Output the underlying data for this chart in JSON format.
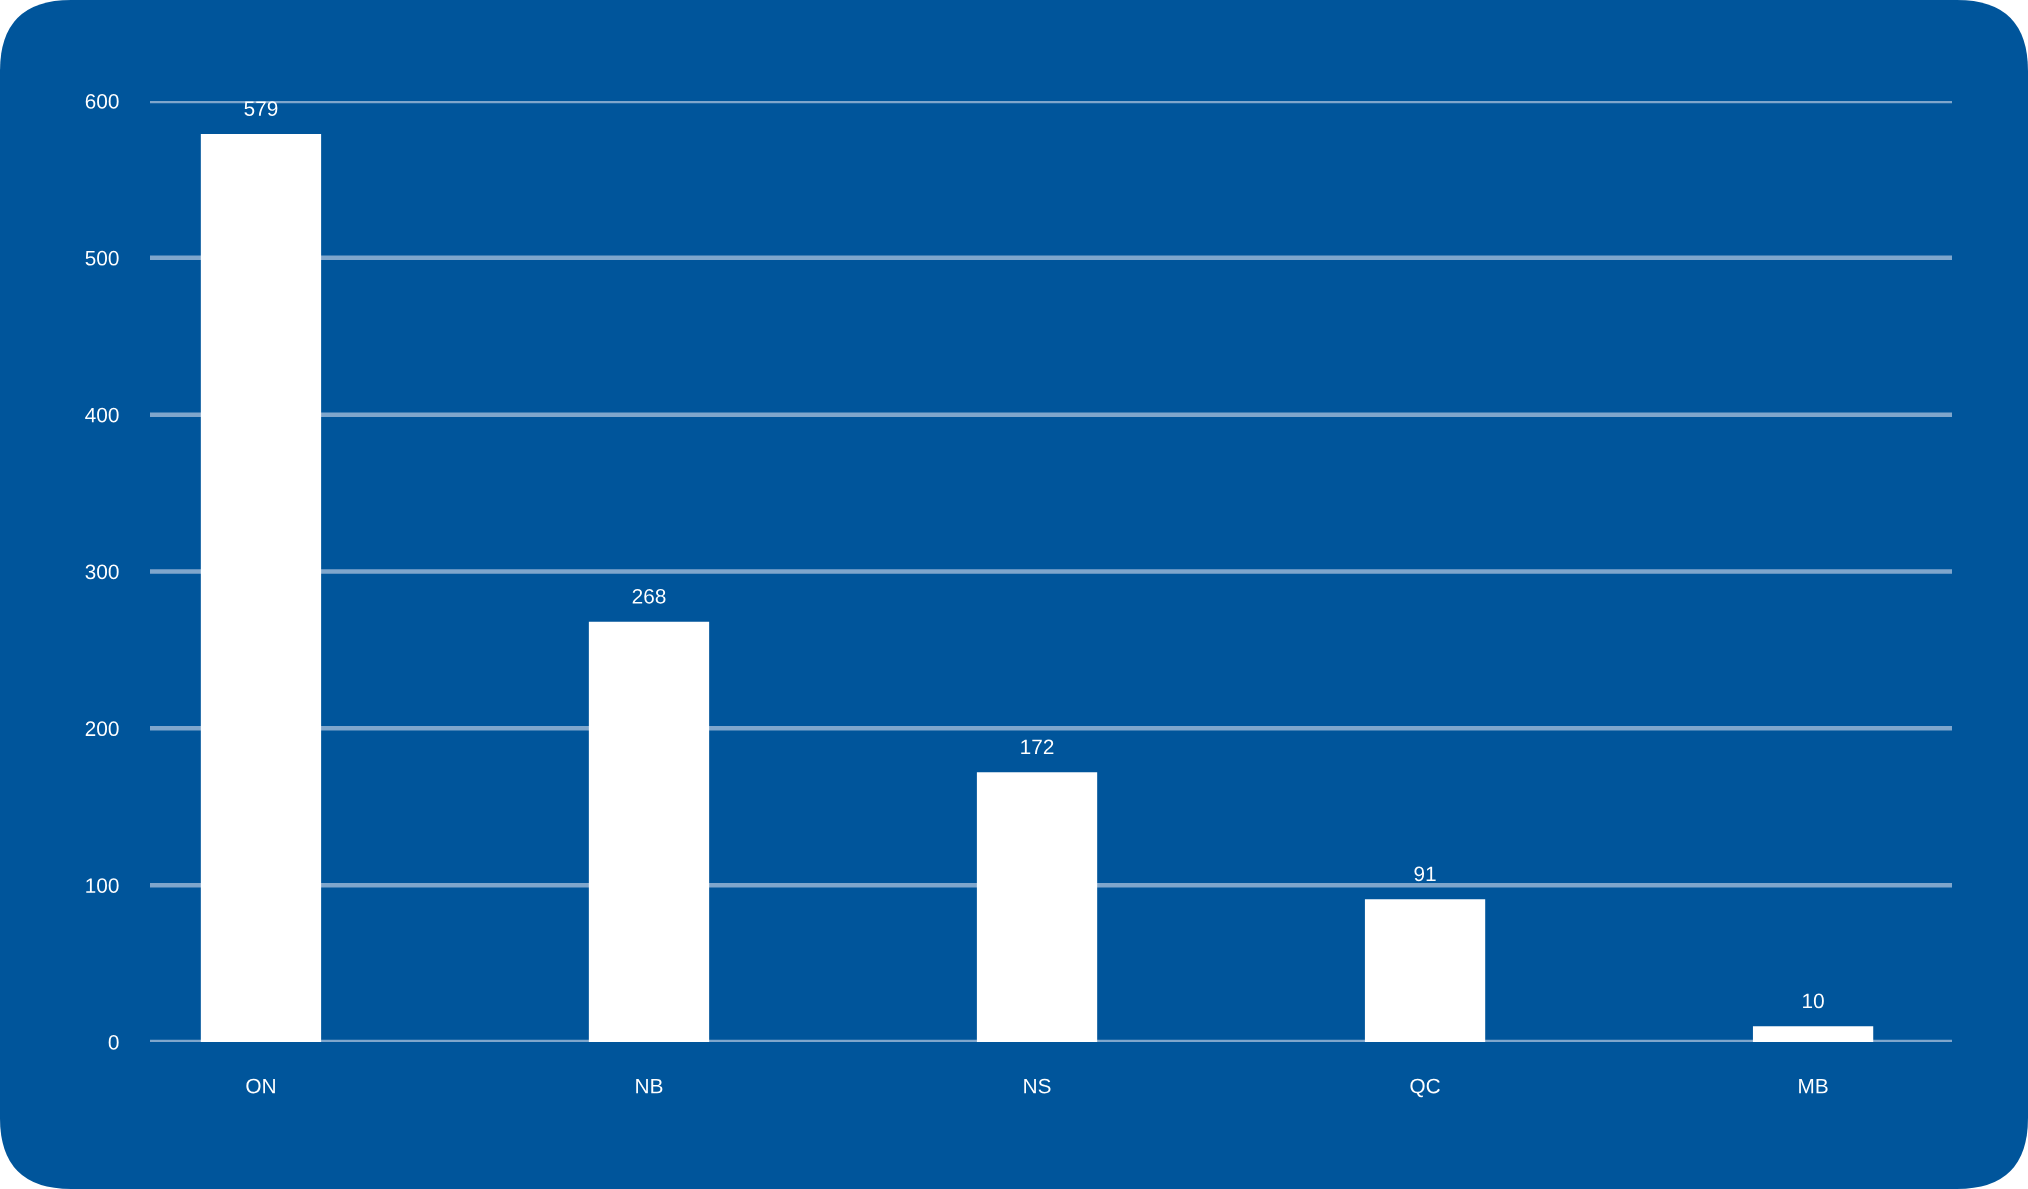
{
  "chart_data": {
    "type": "bar",
    "categories": [
      "ON",
      "NB",
      "NS",
      "QC",
      "MB"
    ],
    "values": [
      579,
      268,
      172,
      91,
      10
    ],
    "color": "#ffffff",
    "ylim": [
      0,
      600
    ],
    "yticks": [
      0,
      100,
      200,
      300,
      400,
      500,
      600
    ],
    "grid": "y",
    "data_labels": true
  }
}
